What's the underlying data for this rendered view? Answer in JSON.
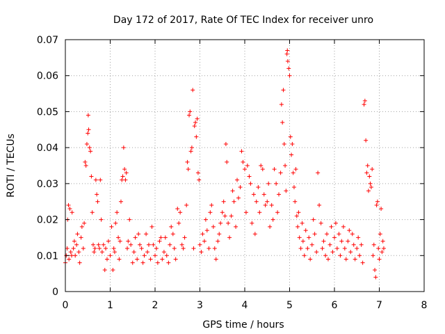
{
  "chart_data": {
    "type": "scatter",
    "title": "Day 172 of 2017, Rate Of TEC Index for receiver unro",
    "xlabel": "GPS time / hours",
    "ylabel": "ROTI / TECUs",
    "xlim": [
      0,
      8
    ],
    "ylim": [
      0,
      0.07
    ],
    "xticks": [
      "0",
      "1",
      "2",
      "3",
      "4",
      "5",
      "6",
      "7",
      "8"
    ],
    "yticks": [
      "0",
      "0.01",
      "0.02",
      "0.03",
      "0.04",
      "0.05",
      "0.06",
      "0.07"
    ],
    "grid": true,
    "marker": "+",
    "color": "#ff0000",
    "series": [
      {
        "name": "ROTI",
        "points": [
          [
            0.0,
            0.008
          ],
          [
            0.02,
            0.01
          ],
          [
            0.04,
            0.012
          ],
          [
            0.05,
            0.02
          ],
          [
            0.07,
            0.024
          ],
          [
            0.08,
            0.009
          ],
          [
            0.1,
            0.023
          ],
          [
            0.12,
            0.011
          ],
          [
            0.14,
            0.01
          ],
          [
            0.15,
            0.022
          ],
          [
            0.18,
            0.012
          ],
          [
            0.2,
            0.014
          ],
          [
            0.22,
            0.01
          ],
          [
            0.25,
            0.013
          ],
          [
            0.27,
            0.016
          ],
          [
            0.3,
            0.011
          ],
          [
            0.32,
            0.008
          ],
          [
            0.35,
            0.015
          ],
          [
            0.37,
            0.018
          ],
          [
            0.4,
            0.012
          ],
          [
            0.42,
            0.019
          ],
          [
            0.44,
            0.036
          ],
          [
            0.46,
            0.035
          ],
          [
            0.48,
            0.041
          ],
          [
            0.5,
            0.044
          ],
          [
            0.51,
            0.049
          ],
          [
            0.52,
            0.045
          ],
          [
            0.54,
            0.04
          ],
          [
            0.56,
            0.039
          ],
          [
            0.58,
            0.032
          ],
          [
            0.6,
            0.022
          ],
          [
            0.62,
            0.013
          ],
          [
            0.64,
            0.011
          ],
          [
            0.66,
            0.012
          ],
          [
            0.68,
            0.031
          ],
          [
            0.7,
            0.027
          ],
          [
            0.72,
            0.025
          ],
          [
            0.74,
            0.013
          ],
          [
            0.76,
            0.012
          ],
          [
            0.78,
            0.031
          ],
          [
            0.8,
            0.02
          ],
          [
            0.82,
            0.011
          ],
          [
            0.85,
            0.013
          ],
          [
            0.88,
            0.006
          ],
          [
            0.9,
            0.012
          ],
          [
            0.93,
            0.009
          ],
          [
            0.96,
            0.014
          ],
          [
            1.0,
            0.01
          ],
          [
            1.03,
            0.018
          ],
          [
            1.06,
            0.006
          ],
          [
            1.08,
            0.012
          ],
          [
            1.1,
            0.011
          ],
          [
            1.12,
            0.019
          ],
          [
            1.15,
            0.022
          ],
          [
            1.18,
            0.015
          ],
          [
            1.2,
            0.009
          ],
          [
            1.22,
            0.014
          ],
          [
            1.24,
            0.025
          ],
          [
            1.26,
            0.031
          ],
          [
            1.28,
            0.032
          ],
          [
            1.3,
            0.04
          ],
          [
            1.32,
            0.034
          ],
          [
            1.34,
            0.031
          ],
          [
            1.36,
            0.033
          ],
          [
            1.38,
            0.012
          ],
          [
            1.4,
            0.014
          ],
          [
            1.43,
            0.02
          ],
          [
            1.46,
            0.013
          ],
          [
            1.5,
            0.008
          ],
          [
            1.53,
            0.011
          ],
          [
            1.56,
            0.015
          ],
          [
            1.6,
            0.009
          ],
          [
            1.63,
            0.016
          ],
          [
            1.66,
            0.013
          ],
          [
            1.7,
            0.012
          ],
          [
            1.73,
            0.008
          ],
          [
            1.76,
            0.01
          ],
          [
            1.8,
            0.016
          ],
          [
            1.83,
            0.011
          ],
          [
            1.86,
            0.013
          ],
          [
            1.9,
            0.009
          ],
          [
            1.93,
            0.018
          ],
          [
            1.96,
            0.013
          ],
          [
            2.0,
            0.01
          ],
          [
            2.03,
            0.012
          ],
          [
            2.06,
            0.008
          ],
          [
            2.1,
            0.014
          ],
          [
            2.13,
            0.015
          ],
          [
            2.16,
            0.009
          ],
          [
            2.2,
            0.011
          ],
          [
            2.23,
            0.015
          ],
          [
            2.26,
            0.01
          ],
          [
            2.3,
            0.008
          ],
          [
            2.33,
            0.013
          ],
          [
            2.36,
            0.018
          ],
          [
            2.4,
            0.016
          ],
          [
            2.43,
            0.012
          ],
          [
            2.46,
            0.009
          ],
          [
            2.5,
            0.023
          ],
          [
            2.53,
            0.019
          ],
          [
            2.56,
            0.022
          ],
          [
            2.6,
            0.013
          ],
          [
            2.63,
            0.012
          ],
          [
            2.66,
            0.015
          ],
          [
            2.7,
            0.024
          ],
          [
            2.72,
            0.036
          ],
          [
            2.74,
            0.034
          ],
          [
            2.76,
            0.049
          ],
          [
            2.78,
            0.05
          ],
          [
            2.8,
            0.039
          ],
          [
            2.82,
            0.04
          ],
          [
            2.84,
            0.056
          ],
          [
            2.86,
            0.012
          ],
          [
            2.88,
            0.046
          ],
          [
            2.9,
            0.047
          ],
          [
            2.92,
            0.043
          ],
          [
            2.94,
            0.048
          ],
          [
            2.96,
            0.033
          ],
          [
            2.98,
            0.031
          ],
          [
            3.0,
            0.013
          ],
          [
            3.03,
            0.011
          ],
          [
            3.06,
            0.016
          ],
          [
            3.1,
            0.014
          ],
          [
            3.13,
            0.02
          ],
          [
            3.16,
            0.017
          ],
          [
            3.2,
            0.012
          ],
          [
            3.23,
            0.022
          ],
          [
            3.26,
            0.024
          ],
          [
            3.3,
            0.018
          ],
          [
            3.33,
            0.012
          ],
          [
            3.36,
            0.009
          ],
          [
            3.4,
            0.014
          ],
          [
            3.43,
            0.016
          ],
          [
            3.46,
            0.019
          ],
          [
            3.5,
            0.022
          ],
          [
            3.53,
            0.025
          ],
          [
            3.56,
            0.021
          ],
          [
            3.58,
            0.041
          ],
          [
            3.6,
            0.036
          ],
          [
            3.63,
            0.019
          ],
          [
            3.66,
            0.015
          ],
          [
            3.7,
            0.021
          ],
          [
            3.73,
            0.028
          ],
          [
            3.76,
            0.025
          ],
          [
            3.8,
            0.018
          ],
          [
            3.83,
            0.031
          ],
          [
            3.86,
            0.026
          ],
          [
            3.9,
            0.029
          ],
          [
            3.93,
            0.039
          ],
          [
            3.96,
            0.036
          ],
          [
            4.0,
            0.034
          ],
          [
            4.03,
            0.022
          ],
          [
            4.06,
            0.035
          ],
          [
            4.1,
            0.032
          ],
          [
            4.13,
            0.03
          ],
          [
            4.16,
            0.019
          ],
          [
            4.2,
            0.027
          ],
          [
            4.23,
            0.016
          ],
          [
            4.26,
            0.025
          ],
          [
            4.3,
            0.029
          ],
          [
            4.33,
            0.022
          ],
          [
            4.36,
            0.035
          ],
          [
            4.4,
            0.034
          ],
          [
            4.43,
            0.027
          ],
          [
            4.46,
            0.024
          ],
          [
            4.5,
            0.025
          ],
          [
            4.53,
            0.03
          ],
          [
            4.56,
            0.018
          ],
          [
            4.6,
            0.024
          ],
          [
            4.63,
            0.02
          ],
          [
            4.66,
            0.034
          ],
          [
            4.7,
            0.03
          ],
          [
            4.73,
            0.022
          ],
          [
            4.76,
            0.027
          ],
          [
            4.8,
            0.033
          ],
          [
            4.82,
            0.052
          ],
          [
            4.84,
            0.047
          ],
          [
            4.86,
            0.056
          ],
          [
            4.88,
            0.041
          ],
          [
            4.9,
            0.035
          ],
          [
            4.92,
            0.028
          ],
          [
            4.94,
            0.066
          ],
          [
            4.95,
            0.067
          ],
          [
            4.96,
            0.064
          ],
          [
            4.98,
            0.062
          ],
          [
            5.0,
            0.06
          ],
          [
            5.02,
            0.043
          ],
          [
            5.04,
            0.038
          ],
          [
            5.06,
            0.041
          ],
          [
            5.08,
            0.033
          ],
          [
            5.1,
            0.029
          ],
          [
            5.12,
            0.025
          ],
          [
            5.14,
            0.034
          ],
          [
            5.16,
            0.021
          ],
          [
            5.18,
            0.018
          ],
          [
            5.2,
            0.022
          ],
          [
            5.22,
            0.015
          ],
          [
            5.25,
            0.012
          ],
          [
            5.28,
            0.019
          ],
          [
            5.3,
            0.014
          ],
          [
            5.33,
            0.01
          ],
          [
            5.36,
            0.017
          ],
          [
            5.4,
            0.012
          ],
          [
            5.43,
            0.015
          ],
          [
            5.46,
            0.009
          ],
          [
            5.5,
            0.013
          ],
          [
            5.53,
            0.02
          ],
          [
            5.56,
            0.016
          ],
          [
            5.6,
            0.011
          ],
          [
            5.63,
            0.033
          ],
          [
            5.66,
            0.024
          ],
          [
            5.7,
            0.019
          ],
          [
            5.73,
            0.012
          ],
          [
            5.76,
            0.014
          ],
          [
            5.8,
            0.01
          ],
          [
            5.83,
            0.016
          ],
          [
            5.86,
            0.009
          ],
          [
            5.9,
            0.013
          ],
          [
            5.93,
            0.018
          ],
          [
            5.96,
            0.011
          ],
          [
            6.0,
            0.015
          ],
          [
            6.03,
            0.019
          ],
          [
            6.06,
            0.012
          ],
          [
            6.1,
            0.016
          ],
          [
            6.13,
            0.01
          ],
          [
            6.16,
            0.014
          ],
          [
            6.2,
            0.018
          ],
          [
            6.23,
            0.012
          ],
          [
            6.26,
            0.009
          ],
          [
            6.3,
            0.014
          ],
          [
            6.33,
            0.017
          ],
          [
            6.36,
            0.011
          ],
          [
            6.4,
            0.016
          ],
          [
            6.43,
            0.013
          ],
          [
            6.46,
            0.009
          ],
          [
            6.5,
            0.012
          ],
          [
            6.53,
            0.015
          ],
          [
            6.56,
            0.01
          ],
          [
            6.6,
            0.013
          ],
          [
            6.63,
            0.008
          ],
          [
            6.66,
            0.052
          ],
          [
            6.68,
            0.053
          ],
          [
            6.7,
            0.042
          ],
          [
            6.72,
            0.033
          ],
          [
            6.74,
            0.035
          ],
          [
            6.76,
            0.028
          ],
          [
            6.78,
            0.032
          ],
          [
            6.8,
            0.03
          ],
          [
            6.82,
            0.029
          ],
          [
            6.84,
            0.034
          ],
          [
            6.86,
            0.01
          ],
          [
            6.88,
            0.013
          ],
          [
            6.9,
            0.006
          ],
          [
            6.92,
            0.004
          ],
          [
            6.94,
            0.024
          ],
          [
            6.96,
            0.025
          ],
          [
            6.98,
            0.012
          ],
          [
            7.0,
            0.009
          ],
          [
            7.02,
            0.016
          ],
          [
            7.04,
            0.023
          ],
          [
            7.06,
            0.011
          ],
          [
            7.08,
            0.014
          ],
          [
            7.1,
            0.012
          ]
        ]
      }
    ]
  }
}
